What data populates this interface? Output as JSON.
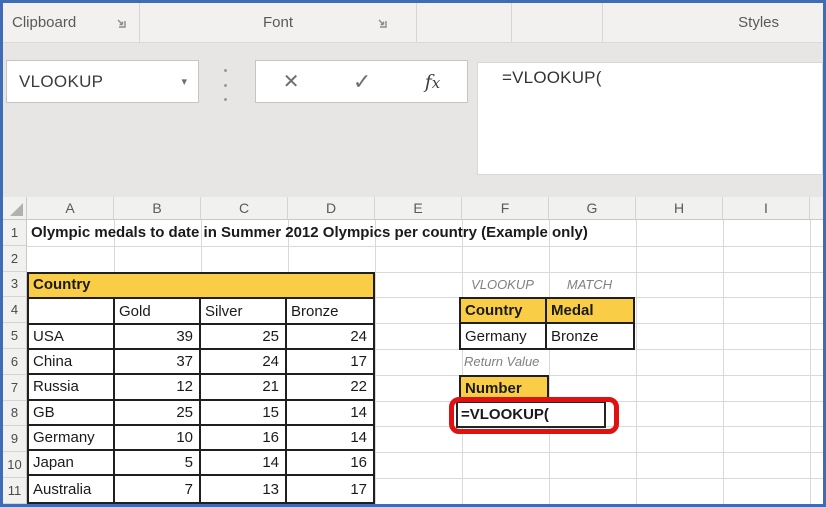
{
  "ribbon": {
    "groups": [
      {
        "label": "Clipboard"
      },
      {
        "label": "Font"
      },
      {
        "label": ""
      },
      {
        "label": ""
      },
      {
        "label": "Styles"
      }
    ]
  },
  "formula_bar": {
    "name_box": "VLOOKUP",
    "formula_text": "=VLOOKUP("
  },
  "grid": {
    "column_headers": [
      "A",
      "B",
      "C",
      "D",
      "E",
      "F",
      "G",
      "H",
      "I"
    ],
    "row_numbers": [
      "1",
      "2",
      "3",
      "4",
      "5",
      "6",
      "7",
      "8",
      "9",
      "10",
      "11"
    ],
    "title": "Olympic medals to date in Summer 2012 Olympics per country (Example only)",
    "medal_table": {
      "banner": "Country",
      "headers": [
        "",
        "Gold",
        "Silver",
        "Bronze"
      ],
      "rows": [
        [
          "USA",
          "39",
          "25",
          "24"
        ],
        [
          "China",
          "37",
          "24",
          "17"
        ],
        [
          "Russia",
          "12",
          "21",
          "22"
        ],
        [
          "GB",
          "25",
          "15",
          "14"
        ],
        [
          "Germany",
          "10",
          "16",
          "14"
        ],
        [
          "Japan",
          "5",
          "14",
          "16"
        ],
        [
          "Australia",
          "7",
          "13",
          "17"
        ]
      ]
    },
    "lookup_panel": {
      "vlookup_label": "VLOOKUP",
      "match_label": "MATCH",
      "headers": [
        "Country",
        "Medal"
      ],
      "values": [
        "Germany",
        "Bronze"
      ],
      "return_value_label": "Return Value",
      "return_header": "Number",
      "formula_cell": "=VLOOKUP("
    }
  },
  "colors": {
    "accent_yellow": "#F9CE46",
    "highlight_red": "#E01111",
    "frame_blue": "#3F6DB5"
  }
}
